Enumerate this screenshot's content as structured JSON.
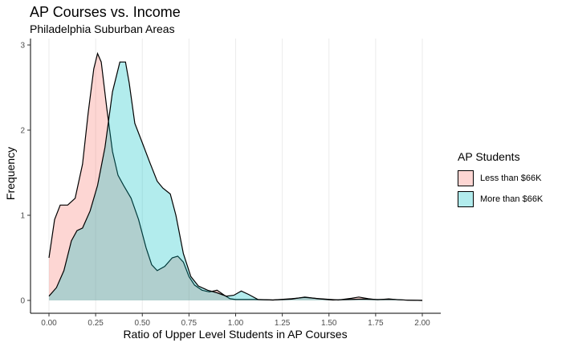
{
  "chart_data": {
    "type": "area",
    "title": "AP Courses vs. Income",
    "subtitle": "Philadelphia Suburban Areas",
    "xlabel": "Ratio of Upper Level Students in AP Courses",
    "ylabel": "Frequency",
    "xlim": [
      0,
      2
    ],
    "ylim": [
      0,
      3
    ],
    "xticks": [
      "0.00",
      "0.25",
      "0.50",
      "0.75",
      "1.00",
      "1.25",
      "1.50",
      "1.75",
      "2.00"
    ],
    "yticks": [
      "0",
      "1",
      "2",
      "3"
    ],
    "grid": "vertical major",
    "legend_position": "right",
    "legend_title": "AP Students",
    "series": [
      {
        "name": "Less than $66K",
        "color": "#F8766D",
        "points": [
          [
            0,
            0.5
          ],
          [
            0.03,
            0.95
          ],
          [
            0.06,
            1.12
          ],
          [
            0.1,
            1.12
          ],
          [
            0.14,
            1.2
          ],
          [
            0.18,
            1.6
          ],
          [
            0.21,
            2.2
          ],
          [
            0.24,
            2.72
          ],
          [
            0.26,
            2.9
          ],
          [
            0.28,
            2.8
          ],
          [
            0.31,
            2.25
          ],
          [
            0.34,
            1.75
          ],
          [
            0.37,
            1.47
          ],
          [
            0.4,
            1.35
          ],
          [
            0.44,
            1.2
          ],
          [
            0.48,
            0.95
          ],
          [
            0.52,
            0.62
          ],
          [
            0.55,
            0.42
          ],
          [
            0.58,
            0.35
          ],
          [
            0.62,
            0.4
          ],
          [
            0.66,
            0.5
          ],
          [
            0.69,
            0.52
          ],
          [
            0.72,
            0.45
          ],
          [
            0.75,
            0.28
          ],
          [
            0.78,
            0.18
          ],
          [
            0.82,
            0.12
          ],
          [
            0.86,
            0.1
          ],
          [
            0.9,
            0.12
          ],
          [
            0.94,
            0.06
          ],
          [
            0.97,
            0.02
          ],
          [
            1.0,
            0.01
          ],
          [
            1.05,
            0.01
          ],
          [
            1.1,
            0.01
          ],
          [
            1.2,
            0.005
          ],
          [
            1.3,
            0.02
          ],
          [
            1.37,
            0.035
          ],
          [
            1.45,
            0.02
          ],
          [
            1.55,
            0.005
          ],
          [
            1.62,
            0.025
          ],
          [
            1.66,
            0.04
          ],
          [
            1.71,
            0.02
          ],
          [
            1.76,
            0.008
          ],
          [
            1.82,
            0.018
          ],
          [
            1.87,
            0.008
          ],
          [
            1.93,
            0.003
          ],
          [
            2.0,
            0
          ]
        ]
      },
      {
        "name": "More than $66K",
        "color": "#00BFC4",
        "points": [
          [
            0,
            0.05
          ],
          [
            0.04,
            0.15
          ],
          [
            0.08,
            0.35
          ],
          [
            0.12,
            0.7
          ],
          [
            0.15,
            0.82
          ],
          [
            0.18,
            0.85
          ],
          [
            0.22,
            1.05
          ],
          [
            0.26,
            1.35
          ],
          [
            0.3,
            1.8
          ],
          [
            0.34,
            2.45
          ],
          [
            0.38,
            2.8
          ],
          [
            0.41,
            2.8
          ],
          [
            0.43,
            2.55
          ],
          [
            0.46,
            2.08
          ],
          [
            0.5,
            1.85
          ],
          [
            0.54,
            1.62
          ],
          [
            0.58,
            1.4
          ],
          [
            0.61,
            1.32
          ],
          [
            0.65,
            1.25
          ],
          [
            0.68,
            1.0
          ],
          [
            0.72,
            0.55
          ],
          [
            0.76,
            0.28
          ],
          [
            0.8,
            0.17
          ],
          [
            0.85,
            0.12
          ],
          [
            0.9,
            0.09
          ],
          [
            0.95,
            0.05
          ],
          [
            0.99,
            0.06
          ],
          [
            1.03,
            0.11
          ],
          [
            1.07,
            0.07
          ],
          [
            1.12,
            0.01
          ],
          [
            1.2,
            0.005
          ],
          [
            1.3,
            0.015
          ],
          [
            1.37,
            0.04
          ],
          [
            1.44,
            0.02
          ],
          [
            1.52,
            0.005
          ],
          [
            1.6,
            0.01
          ],
          [
            1.68,
            0.015
          ],
          [
            1.76,
            0.01
          ],
          [
            1.84,
            0.012
          ],
          [
            1.92,
            0.003
          ],
          [
            2.0,
            0
          ]
        ]
      }
    ]
  }
}
